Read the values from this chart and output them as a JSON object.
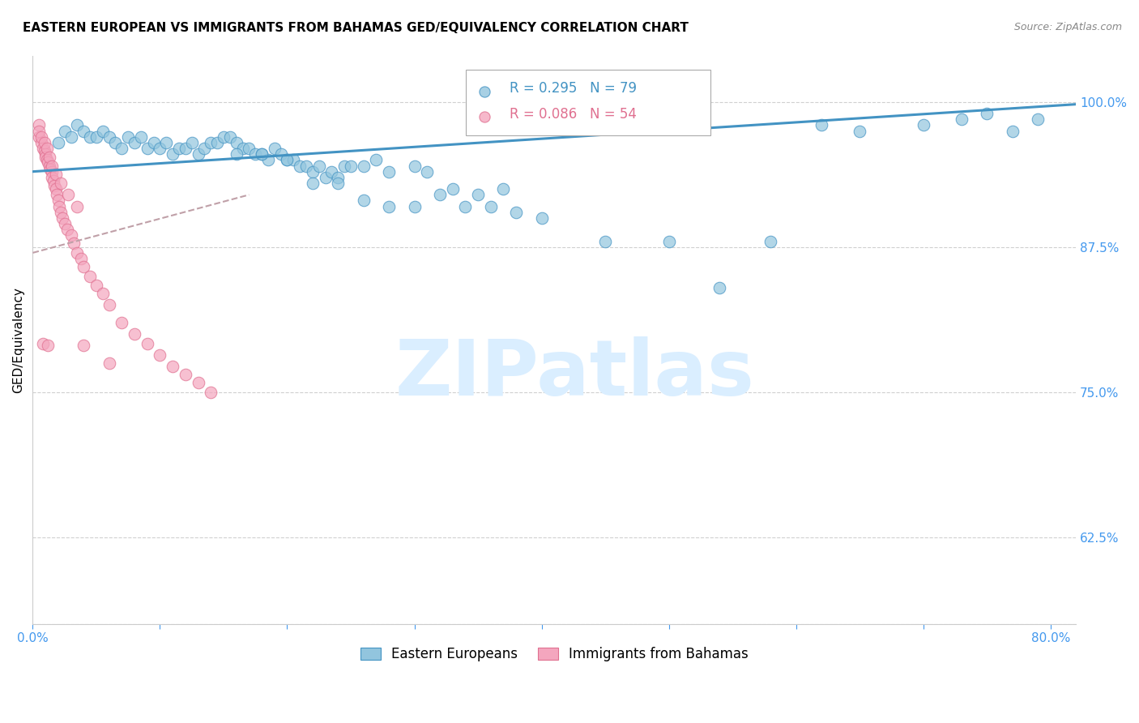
{
  "title": "EASTERN EUROPEAN VS IMMIGRANTS FROM BAHAMAS GED/EQUIVALENCY CORRELATION CHART",
  "source": "Source: ZipAtlas.com",
  "ylabel": "GED/Equivalency",
  "x_ticks": [
    0.0,
    0.1,
    0.2,
    0.3,
    0.4,
    0.5,
    0.6,
    0.7,
    0.8
  ],
  "x_tick_labels": [
    "0.0%",
    "",
    "",
    "",
    "",
    "",
    "",
    "",
    "80.0%"
  ],
  "y_ticks": [
    0.55,
    0.625,
    0.75,
    0.875,
    1.0
  ],
  "y_tick_labels": [
    "",
    "62.5%",
    "75.0%",
    "87.5%",
    "100.0%"
  ],
  "xlim": [
    0.0,
    0.82
  ],
  "ylim": [
    0.55,
    1.04
  ],
  "legend_blue_label": "Eastern Europeans",
  "legend_pink_label": "Immigrants from Bahamas",
  "R_blue": 0.295,
  "N_blue": 79,
  "R_pink": 0.086,
  "N_pink": 54,
  "blue_color": "#92c5de",
  "pink_color": "#f4a6be",
  "blue_line_color": "#4393c3",
  "pink_line_color": "#d6604d",
  "trendline_pink_color": "#e08080",
  "watermark_color": "#daeeff",
  "background_color": "#ffffff",
  "grid_color": "#d0d0d0",
  "title_fontsize": 11,
  "axis_label_fontsize": 11,
  "tick_fontsize": 11,
  "blue_scatter_x": [
    0.02,
    0.025,
    0.03,
    0.035,
    0.04,
    0.045,
    0.05,
    0.055,
    0.06,
    0.065,
    0.07,
    0.075,
    0.08,
    0.085,
    0.09,
    0.095,
    0.1,
    0.105,
    0.11,
    0.115,
    0.12,
    0.125,
    0.13,
    0.135,
    0.14,
    0.145,
    0.15,
    0.155,
    0.16,
    0.165,
    0.17,
    0.175,
    0.18,
    0.185,
    0.19,
    0.195,
    0.2,
    0.205,
    0.21,
    0.215,
    0.22,
    0.225,
    0.23,
    0.235,
    0.24,
    0.245,
    0.25,
    0.26,
    0.27,
    0.28,
    0.3,
    0.31,
    0.33,
    0.35,
    0.37,
    0.4,
    0.45,
    0.5,
    0.54,
    0.58,
    0.62,
    0.65,
    0.7,
    0.73,
    0.75,
    0.77,
    0.79,
    0.22,
    0.24,
    0.26,
    0.28,
    0.3,
    0.32,
    0.34,
    0.36,
    0.38,
    0.2,
    0.18,
    0.16
  ],
  "blue_scatter_y": [
    0.965,
    0.975,
    0.97,
    0.98,
    0.975,
    0.97,
    0.97,
    0.975,
    0.97,
    0.965,
    0.96,
    0.97,
    0.965,
    0.97,
    0.96,
    0.965,
    0.96,
    0.965,
    0.955,
    0.96,
    0.96,
    0.965,
    0.955,
    0.96,
    0.965,
    0.965,
    0.97,
    0.97,
    0.965,
    0.96,
    0.96,
    0.955,
    0.955,
    0.95,
    0.96,
    0.955,
    0.95,
    0.95,
    0.945,
    0.945,
    0.94,
    0.945,
    0.935,
    0.94,
    0.935,
    0.945,
    0.945,
    0.945,
    0.95,
    0.94,
    0.945,
    0.94,
    0.925,
    0.92,
    0.925,
    0.9,
    0.88,
    0.88,
    0.84,
    0.88,
    0.98,
    0.975,
    0.98,
    0.985,
    0.99,
    0.975,
    0.985,
    0.93,
    0.93,
    0.915,
    0.91,
    0.91,
    0.92,
    0.91,
    0.91,
    0.905,
    0.95,
    0.955,
    0.955
  ],
  "pink_scatter_x": [
    0.005,
    0.005,
    0.007,
    0.008,
    0.009,
    0.01,
    0.01,
    0.011,
    0.012,
    0.013,
    0.014,
    0.015,
    0.015,
    0.016,
    0.017,
    0.018,
    0.019,
    0.02,
    0.021,
    0.022,
    0.023,
    0.025,
    0.027,
    0.03,
    0.032,
    0.035,
    0.038,
    0.04,
    0.045,
    0.05,
    0.055,
    0.06,
    0.07,
    0.08,
    0.09,
    0.1,
    0.11,
    0.12,
    0.13,
    0.14,
    0.005,
    0.007,
    0.009,
    0.011,
    0.013,
    0.015,
    0.018,
    0.022,
    0.028,
    0.035,
    0.008,
    0.012,
    0.04,
    0.06
  ],
  "pink_scatter_y": [
    0.98,
    0.97,
    0.965,
    0.96,
    0.958,
    0.955,
    0.952,
    0.95,
    0.948,
    0.945,
    0.942,
    0.94,
    0.935,
    0.932,
    0.928,
    0.925,
    0.92,
    0.915,
    0.91,
    0.905,
    0.9,
    0.895,
    0.89,
    0.885,
    0.878,
    0.87,
    0.865,
    0.858,
    0.85,
    0.842,
    0.835,
    0.825,
    0.81,
    0.8,
    0.792,
    0.782,
    0.772,
    0.765,
    0.758,
    0.75,
    0.975,
    0.97,
    0.965,
    0.96,
    0.952,
    0.945,
    0.938,
    0.93,
    0.92,
    0.91,
    0.792,
    0.79,
    0.79,
    0.775
  ],
  "blue_trendline_x": [
    0.0,
    0.82
  ],
  "blue_trendline_y": [
    0.94,
    0.998
  ],
  "pink_trendline_x": [
    0.0,
    0.17
  ],
  "pink_trendline_y": [
    0.87,
    0.92
  ]
}
